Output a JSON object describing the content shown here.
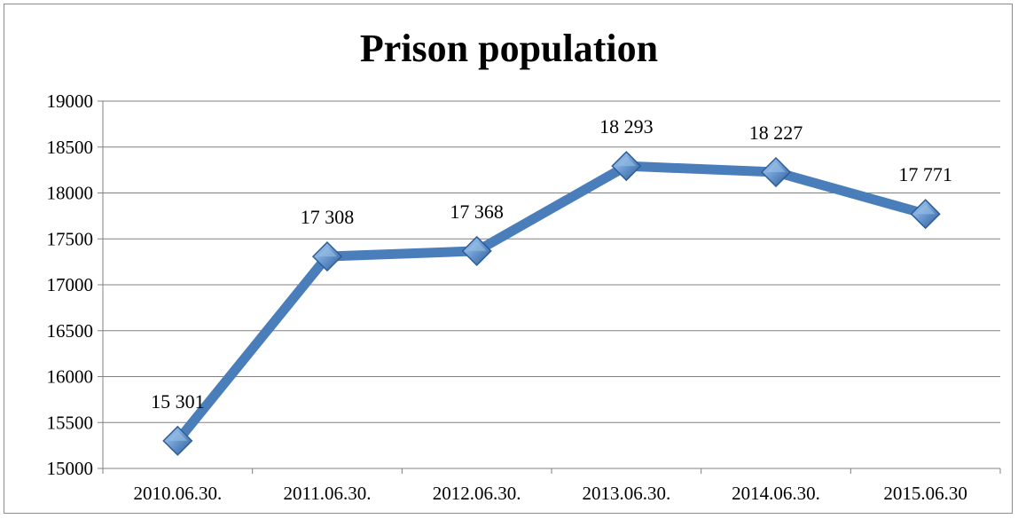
{
  "chart_data": {
    "type": "line",
    "title": "Prison population",
    "categories": [
      "2010.06.30.",
      "2011.06.30.",
      "2012.06.30.",
      "2013.06.30.",
      "2014.06.30.",
      "2015.06.30"
    ],
    "values": [
      15301,
      17308,
      17368,
      18293,
      18227,
      17771
    ],
    "data_labels": [
      "15 301",
      "17 308",
      "17 368",
      "18 293",
      "18 227",
      "17 771"
    ],
    "ylim": [
      15000,
      19000
    ],
    "yticks": [
      "15000",
      "15500",
      "16000",
      "16500",
      "17000",
      "17500",
      "18000",
      "18500",
      "19000"
    ],
    "grid": true,
    "legend": "none",
    "colors": {
      "line": "#4a7ebb",
      "marker_light": "#9dc3e6",
      "marker_dark": "#2e5c96",
      "grid": "#808080"
    }
  }
}
